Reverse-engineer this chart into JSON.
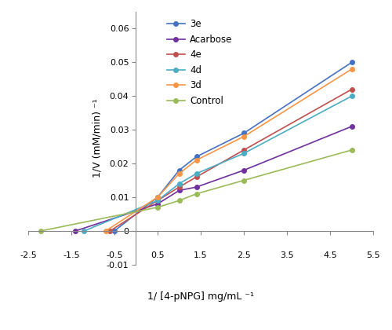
{
  "series": {
    "3e": {
      "x": [
        -0.5,
        0.5,
        1.0,
        1.4,
        2.5,
        5.0
      ],
      "y": [
        0.0,
        0.01,
        0.018,
        0.022,
        0.029,
        0.05
      ],
      "color": "#4472C4",
      "marker": "o"
    },
    "Acarbose": {
      "x": [
        -1.4,
        0.5,
        1.0,
        1.4,
        2.5,
        5.0
      ],
      "y": [
        0.0,
        0.008,
        0.012,
        0.013,
        0.018,
        0.031
      ],
      "color": "#7030A0",
      "marker": "o"
    },
    "4e": {
      "x": [
        -0.6,
        0.5,
        1.0,
        1.4,
        2.5,
        5.0
      ],
      "y": [
        0.0,
        0.009,
        0.013,
        0.016,
        0.024,
        0.042
      ],
      "color": "#C0504D",
      "marker": "o"
    },
    "4d": {
      "x": [
        -1.2,
        0.5,
        1.0,
        1.4,
        2.5,
        5.0
      ],
      "y": [
        0.0,
        0.009,
        0.014,
        0.017,
        0.023,
        0.04
      ],
      "color": "#4BACC6",
      "marker": "o"
    },
    "3d": {
      "x": [
        -0.7,
        0.5,
        1.0,
        1.4,
        2.5,
        5.0
      ],
      "y": [
        0.0,
        0.01,
        0.017,
        0.021,
        0.028,
        0.048
      ],
      "color": "#F79646",
      "marker": "o"
    },
    "Control": {
      "x": [
        -2.2,
        0.5,
        1.0,
        1.4,
        2.5,
        5.0
      ],
      "y": [
        0.0,
        0.007,
        0.009,
        0.011,
        0.015,
        0.024
      ],
      "color": "#9BBB59",
      "marker": "o"
    }
  },
  "xlabel": "1/ [4-pNPG] mg/mL ⁻¹",
  "ylabel": "1/V (mM/min) ⁻¹",
  "xlim": [
    -2.5,
    5.5
  ],
  "ylim": [
    -0.01,
    0.065
  ],
  "xticks": [
    -2.5,
    -1.5,
    -0.5,
    0.5,
    1.5,
    2.5,
    3.5,
    4.5,
    5.5
  ],
  "xtick_labels": [
    "-2.5",
    "-1.5",
    "-0.5",
    "0.5",
    "1.5",
    "2.5",
    "3.5",
    "4.5",
    "5.5"
  ],
  "yticks": [
    -0.01,
    0.0,
    0.01,
    0.02,
    0.03,
    0.04,
    0.05,
    0.06
  ],
  "ytick_labels": [
    "-0.01",
    "0",
    "0.01",
    "0.02",
    "0.03",
    "0.04",
    "0.05",
    "0.06"
  ],
  "legend_order": [
    "3e",
    "Acarbose",
    "4e",
    "4d",
    "3d",
    "Control"
  ],
  "background_color": "#ffffff",
  "marker_size": 4,
  "linewidth": 1.2
}
